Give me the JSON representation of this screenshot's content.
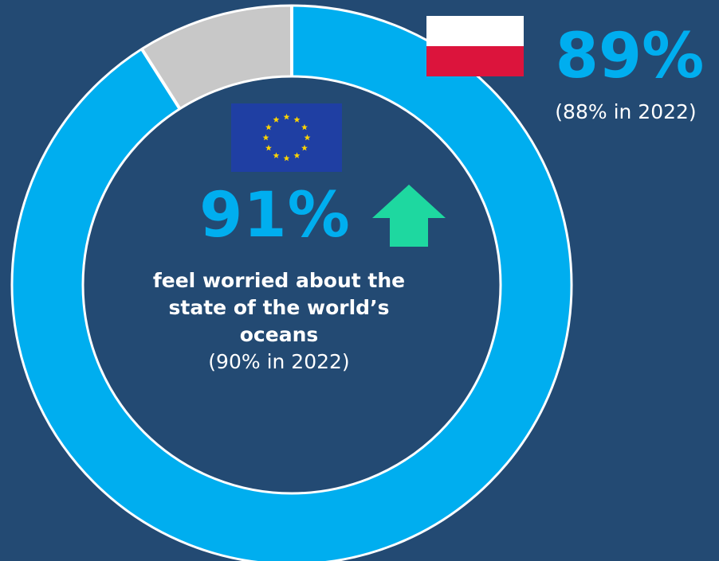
{
  "chart_data": {
    "type": "pie",
    "donut": true,
    "title": "",
    "slices": [
      {
        "label": "feel worried",
        "value": 91,
        "color": "#00aeef"
      },
      {
        "label": "other",
        "value": 9,
        "color": "#c8c8c8"
      }
    ],
    "start_angle_deg": 0,
    "direction": "clockwise"
  },
  "eu": {
    "flag_icon": "eu-flag-icon",
    "value_text": "91%",
    "trend_icon": "up-arrow-icon",
    "trend_color": "#1ed8a0",
    "line1": "feel worried about the",
    "line2": "state of the world’s",
    "line3": "oceans",
    "previous": "(90% in 2022)"
  },
  "country": {
    "flag_icon": "poland-flag-icon",
    "value_text": "89%",
    "previous": "(88% in 2022)"
  },
  "colors": {
    "background": "#234a73",
    "accent": "#00aeef",
    "remainder": "#c8c8c8",
    "divider": "#ffffff"
  }
}
